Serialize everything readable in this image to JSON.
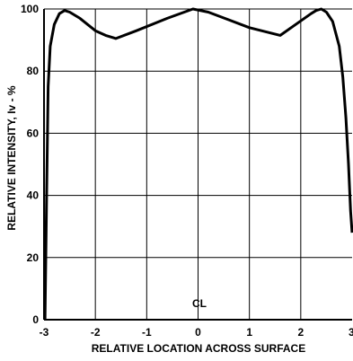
{
  "chart_data": {
    "type": "line",
    "title": "",
    "xlabel": "RELATIVE LOCATION ACROSS SURFACE",
    "ylabel": "RELATIVE INTENSITY, Iv - %",
    "xlim": [
      -3,
      3
    ],
    "ylim": [
      0,
      100
    ],
    "x_ticks": [
      "-3",
      "-2",
      "-1",
      "0",
      "1",
      "2",
      "3"
    ],
    "y_ticks": [
      "0",
      "20",
      "40",
      "60",
      "80",
      "100"
    ],
    "grid": true,
    "annotation": "CL",
    "series": [
      {
        "x": [
          -2.98,
          -2.95,
          -2.92,
          -2.88,
          -2.8,
          -2.7,
          -2.6,
          -2.5,
          -2.3,
          -2.0,
          -1.8,
          -1.6,
          -1.2,
          -0.6,
          -0.1,
          0.2,
          0.6,
          1.0,
          1.6,
          1.9,
          2.2,
          2.3,
          2.4,
          2.5,
          2.62,
          2.75,
          2.82,
          2.88,
          2.93,
          2.97,
          3.0
        ],
        "y": [
          0,
          40,
          75,
          88,
          95,
          98.5,
          99.5,
          99,
          97,
          93,
          91.5,
          90.5,
          93,
          97,
          100,
          99,
          96.5,
          94,
          91.5,
          95,
          98.5,
          99.5,
          100,
          99,
          96,
          88,
          78,
          65,
          50,
          35,
          28
        ]
      }
    ]
  }
}
